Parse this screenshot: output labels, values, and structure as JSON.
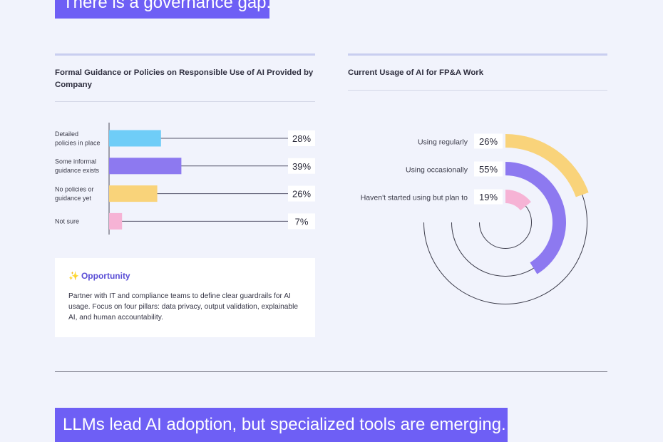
{
  "banners": {
    "top": "There is a governance gap.",
    "bottom": "LLMs lead AI adoption, but specialized tools are emerging."
  },
  "colors": {
    "background": "#f1f3fc",
    "accent": "#6e5ff5",
    "blue": "#6fcdf7",
    "purple": "#8d79f0",
    "yellow": "#f9d37a",
    "pink": "#f6b3d5"
  },
  "chart_data": [
    {
      "type": "bar",
      "orientation": "horizontal",
      "title": "Formal Guidance or Policies on Responsible Use of AI Provided by Company",
      "categories": [
        "Detailed policies in place",
        "Some informal guidance exists",
        "No policies or guidance yet",
        "Not sure"
      ],
      "category_lines": [
        [
          "Detailed",
          "policies in place"
        ],
        [
          "Some informal",
          "guidance exists"
        ],
        [
          "No policies or",
          "guidance yet"
        ],
        [
          "Not sure"
        ]
      ],
      "values": [
        28,
        39,
        26,
        7
      ],
      "value_labels": [
        "28%",
        "39%",
        "26%",
        "7%"
      ],
      "bar_colors": [
        "#6fcdf7",
        "#8d79f0",
        "#f9d37a",
        "#f6b3d5"
      ],
      "unit": "%",
      "grid": false
    },
    {
      "type": "radial_bar",
      "title": "Current Usage of AI for FP&A Work",
      "categories": [
        "Using regularly",
        "Using occasionally",
        "Haven't started using but plan to"
      ],
      "values": [
        26,
        55,
        19
      ],
      "value_labels": [
        "26%",
        "55%",
        "19%"
      ],
      "bar_colors": [
        "#f9d37a",
        "#8d79f0",
        "#f6b3d5"
      ],
      "unit": "%"
    }
  ],
  "opportunity": {
    "icon": "sparkles-icon",
    "title": "Opportunity",
    "body": "Partner with IT and compliance teams to define clear guardrails for AI usage. Focus on four pillars: data privacy, output validation, explainable AI, and human accountability."
  }
}
